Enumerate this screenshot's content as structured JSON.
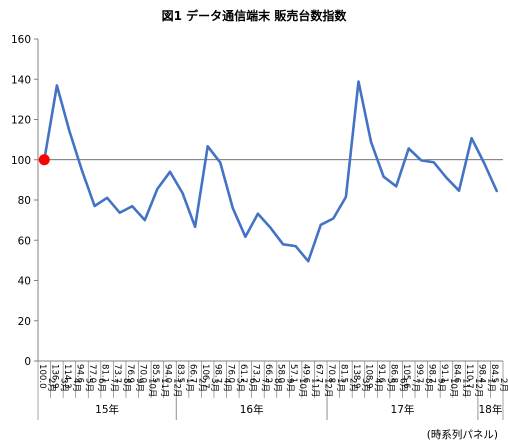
{
  "chart_data": {
    "type": "line",
    "title": "図1 データ通信端末 販売台数指数",
    "source_note": "(時系列パネル)",
    "ylim": [
      0,
      160
    ],
    "yticks": [
      0,
      20,
      40,
      60,
      80,
      100,
      120,
      140,
      160
    ],
    "grid": false,
    "baseline": 100,
    "line_color": "#4472C4",
    "marker_color": "#FF0000",
    "highlight_index": 0,
    "highlight_label_color": "#FF0000",
    "x": [
      "2月",
      "3月",
      "4月",
      "5月",
      "6月",
      "7月",
      "8月",
      "9月",
      "10月",
      "11月",
      "12月",
      "1月",
      "2月",
      "3月",
      "4月",
      "5月",
      "6月",
      "7月",
      "8月",
      "9月",
      "10月",
      "11月",
      "12月",
      "1月",
      "2月",
      "3月",
      "4月",
      "5月",
      "6月",
      "7月",
      "8月",
      "9月",
      "10月",
      "11月",
      "12月",
      "1月",
      "2月"
    ],
    "value_labels": [
      "100.0",
      "136.9",
      "114.3",
      "94.6",
      "77.0",
      "81.1",
      "73.7",
      "76.9",
      "70.0",
      "85.5",
      "94.0",
      "83.5",
      "66.7",
      "106.7",
      "98.7",
      "76.0",
      "61.7",
      "73.2",
      "66.2",
      "58.0",
      "57.1",
      "49.6",
      "67.7",
      "70.8",
      "81.5",
      "138.9",
      "108.9",
      "91.6",
      "86.8",
      "105.6",
      "99.7",
      "98.7",
      "91.1",
      "84.6",
      "110.7",
      "98.4",
      "84.5"
    ],
    "values": [
      100.0,
      136.9,
      114.3,
      94.6,
      77.0,
      81.1,
      73.7,
      76.9,
      70.0,
      85.5,
      94.0,
      83.5,
      66.7,
      106.7,
      98.7,
      76.0,
      61.7,
      73.2,
      66.2,
      58.0,
      57.1,
      49.6,
      67.7,
      70.8,
      81.5,
      138.9,
      108.9,
      91.6,
      86.8,
      105.6,
      99.7,
      98.7,
      91.1,
      84.6,
      110.7,
      98.4,
      84.5
    ],
    "years": [
      {
        "label": "15年",
        "start": 0,
        "end": 10
      },
      {
        "label": "16年",
        "start": 11,
        "end": 22
      },
      {
        "label": "17年",
        "start": 23,
        "end": 34
      },
      {
        "label": "18年",
        "start": 35,
        "end": 36
      }
    ]
  }
}
